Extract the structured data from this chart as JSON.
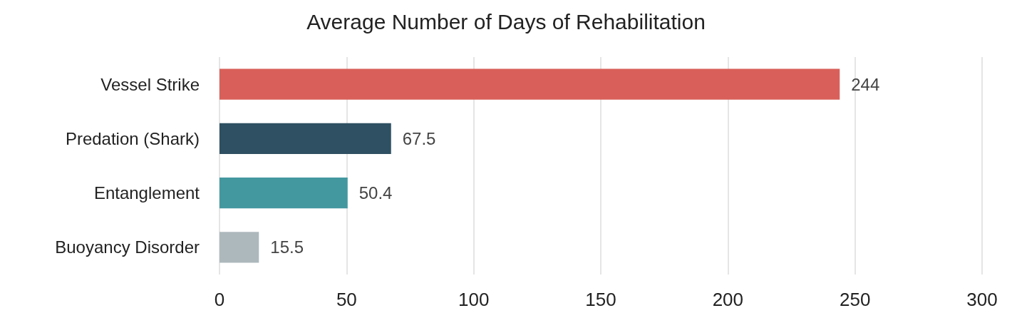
{
  "chart_data": {
    "type": "bar",
    "orientation": "horizontal",
    "title": "Average Number of Days of Rehabilitation",
    "categories": [
      "Vessel Strike",
      "Predation (Shark)",
      "Entanglement",
      "Buoyancy Disorder"
    ],
    "values": [
      244,
      67.5,
      50.4,
      15.5
    ],
    "colors": [
      "#d9605a",
      "#2e5062",
      "#4398a0",
      "#adb8bd"
    ],
    "xlim": [
      0,
      300
    ],
    "xticks": [
      0,
      50,
      100,
      150,
      200,
      250,
      300
    ],
    "grid": "x",
    "data_labels": true
  }
}
